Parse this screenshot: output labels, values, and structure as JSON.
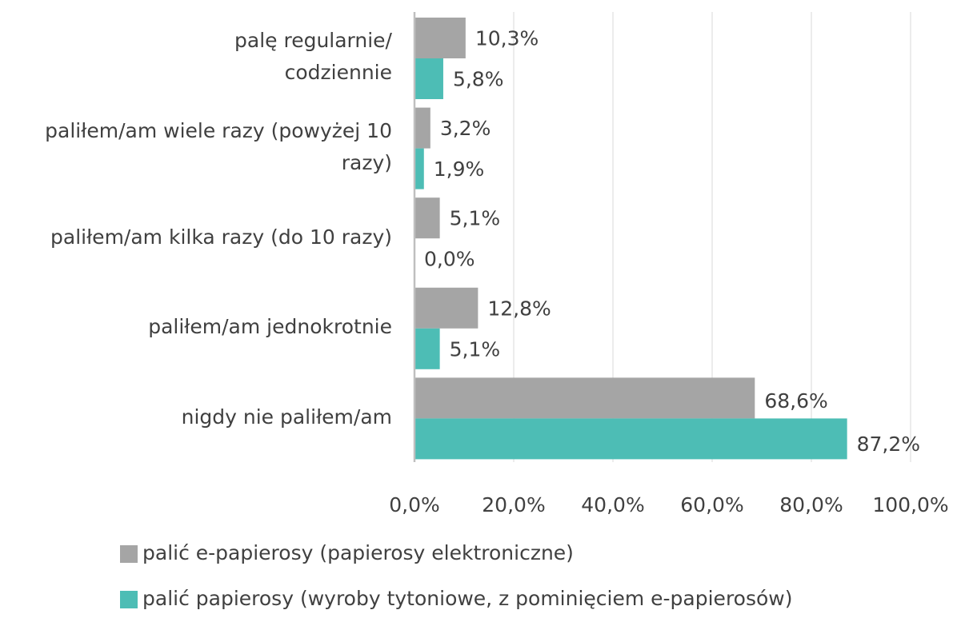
{
  "chart_data": {
    "type": "hbar",
    "categories": [
      "palę regularnie/\ncodziennie",
      "paliłem/am wiele razy (powyżej 10\nrazy)",
      "paliłem/am kilka razy (do 10 razy)",
      "paliłem/am jednokrotnie",
      "nigdy nie paliłem/am"
    ],
    "series": [
      {
        "name": "palić e-papierosy (papierosy elektroniczne)",
        "color": "#a5a5a5",
        "values": [
          10.3,
          3.2,
          5.1,
          12.8,
          68.6
        ],
        "value_labels": [
          "10,3%",
          "3,2%",
          "5,1%",
          "12,8%",
          "68,6%"
        ]
      },
      {
        "name": "palić papierosy (wyroby tytoniowe, z pominięciem e-papierosów)",
        "color": "#4dbdb5",
        "values": [
          5.8,
          1.9,
          0.0,
          5.1,
          87.2
        ],
        "value_labels": [
          "5,8%",
          "1,9%",
          "0,0%",
          "5,1%",
          "87,2%"
        ]
      }
    ],
    "xlim": [
      0,
      100
    ],
    "xticks": [
      {
        "value": 0,
        "label": "0,0%"
      },
      {
        "value": 20,
        "label": "20,0%"
      },
      {
        "value": 40,
        "label": "40,0%"
      },
      {
        "value": 60,
        "label": "60,0%"
      },
      {
        "value": 80,
        "label": "80,0%"
      },
      {
        "value": 100,
        "label": "100,0%"
      }
    ],
    "grid": true,
    "legend": "bottom"
  }
}
